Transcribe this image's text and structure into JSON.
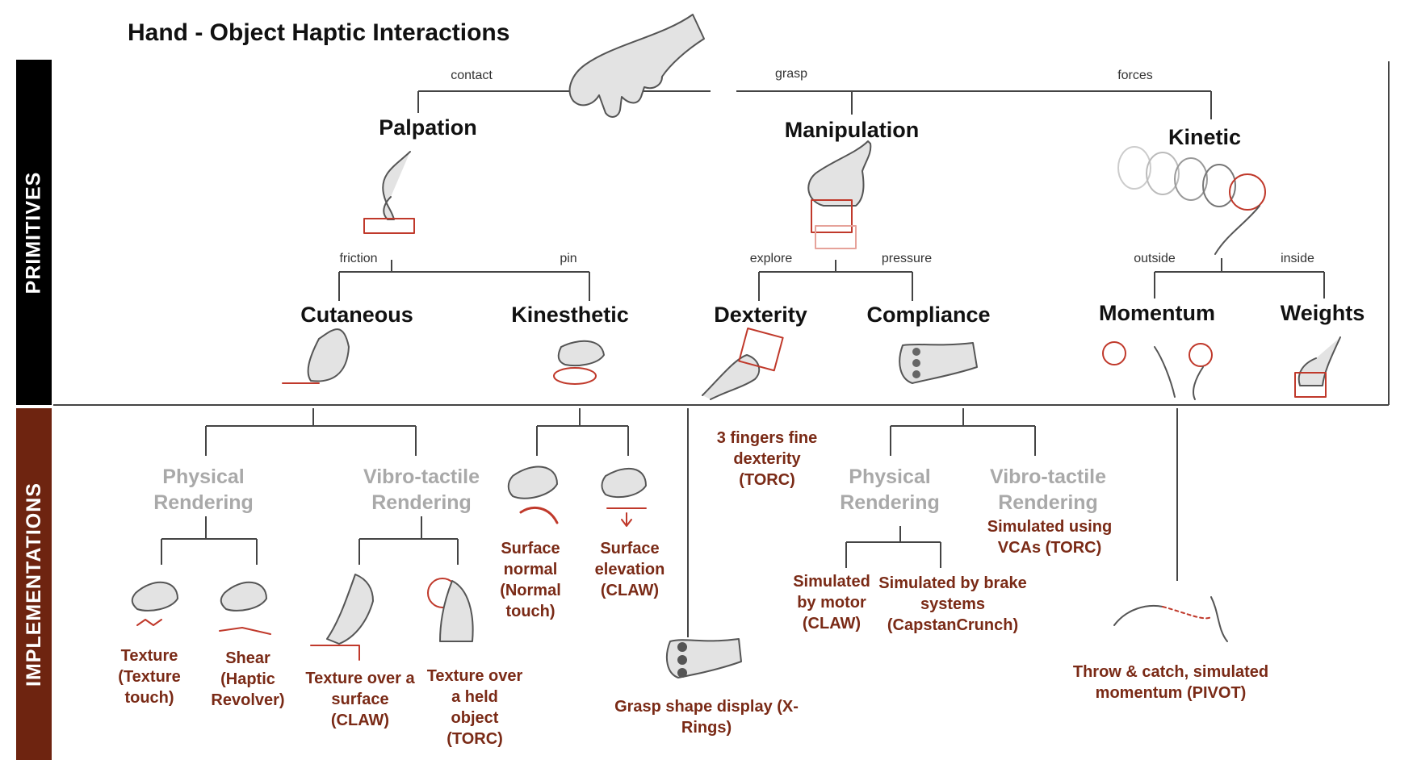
{
  "title": "Hand - Object Haptic Interactions",
  "sections": {
    "primitives": "PRIMITIVES",
    "implementations": "IMPLEMENTATIONS"
  },
  "edges": {
    "contact": "contact",
    "grasp": "grasp",
    "forces": "forces",
    "friction": "friction",
    "pin": "pin",
    "explore": "explore",
    "pressure": "pressure",
    "outside": "outside",
    "inside": "inside"
  },
  "primitives": {
    "palpation": "Palpation",
    "manipulation": "Manipulation",
    "kinetic": "Kinetic",
    "cutaneous": "Cutaneous",
    "kinesthetic": "Kinesthetic",
    "dexterity": "Dexterity",
    "compliance": "Compliance",
    "momentum": "Momentum",
    "weights": "Weights"
  },
  "renderings": {
    "physical_1": "Physical Rendering",
    "vibro_1": "Vibro-tactile Rendering",
    "physical_2": "Physical Rendering",
    "vibro_2": "Vibro-tactile Rendering"
  },
  "implementations": {
    "texture_touch": "Texture (Texture touch)",
    "shear": "Shear (Haptic Revolver)",
    "texture_surface": "Texture over a surface (CLAW)",
    "texture_held": "Texture over a held object (TORC)",
    "surface_normal": "Surface normal (Normal touch)",
    "surface_elevation": "Surface elevation (CLAW)",
    "three_fingers": "3 fingers fine dexterity (TORC)",
    "grasp_shape": "Grasp shape display (X-Rings)",
    "sim_motor": "Simulated by motor (CLAW)",
    "sim_brake": "Simulated by brake systems (CapstanCrunch)",
    "sim_vca": "Simulated using VCAs (TORC)",
    "throw_catch": "Throw & catch, simulated momentum (PIVOT)"
  },
  "colors": {
    "accent": "#7a2a16",
    "sketch_red": "#c0392b",
    "muted": "#a9a9a9"
  }
}
